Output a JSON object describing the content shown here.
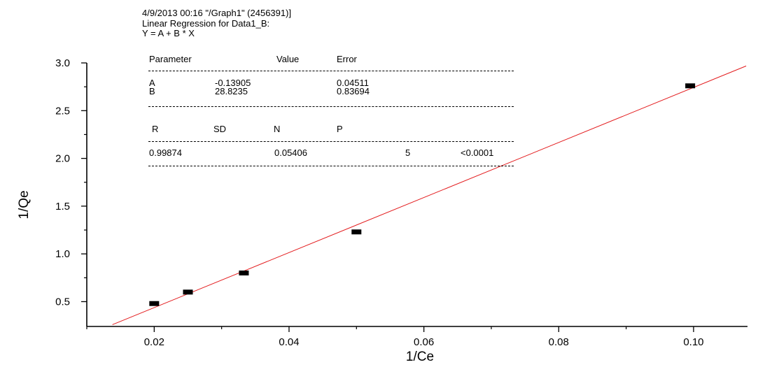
{
  "chart_data": {
    "type": "scatter",
    "xlabel": "1/Ce",
    "ylabel": "1/Qe",
    "xlim": [
      0.01,
      0.108
    ],
    "ylim": [
      0.24,
      3.0
    ],
    "x_ticks": [
      0.02,
      0.04,
      0.06,
      0.08,
      0.1
    ],
    "x_tick_labels": [
      "0.02",
      "0.04",
      "0.06",
      "0.08",
      "0.10"
    ],
    "y_ticks": [
      0.5,
      1.0,
      1.5,
      2.0,
      2.5,
      3.0
    ],
    "y_tick_labels": [
      "0.5",
      "1.0",
      "1.5",
      "2.0",
      "2.5",
      "3.0"
    ],
    "grid": false,
    "points": [
      {
        "x": 0.02,
        "y": 0.48
      },
      {
        "x": 0.025,
        "y": 0.6
      },
      {
        "x": 0.0333,
        "y": 0.8
      },
      {
        "x": 0.05,
        "y": 1.23
      },
      {
        "x": 0.0995,
        "y": 2.76
      }
    ],
    "fit_line": {
      "intercept": -0.13905,
      "slope": 28.8235,
      "x_range": [
        0.0138,
        0.1078
      ]
    },
    "colors": {
      "points": "#000000",
      "fit_line": "#e31a1c",
      "axes": "#000000"
    }
  },
  "report": {
    "header": [
      "4/9/2013 00:16 \"/Graph1\" (2456391)]",
      "Linear Regression for Data1_B:",
      "Y = A + B * X"
    ],
    "param_headers": [
      "Parameter",
      "Value",
      "Error"
    ],
    "params": [
      {
        "name": "A",
        "value": "-0.13905",
        "error": "0.04511"
      },
      {
        "name": "B",
        "value": "28.8235",
        "error": "0.83694"
      }
    ],
    "stat_headers": [
      "R",
      "SD",
      "N",
      "P"
    ],
    "stats": [
      "0.99874",
      "0.05406",
      "5",
      "<0.0001"
    ],
    "rule_text": "------------------------------------------------------------"
  }
}
